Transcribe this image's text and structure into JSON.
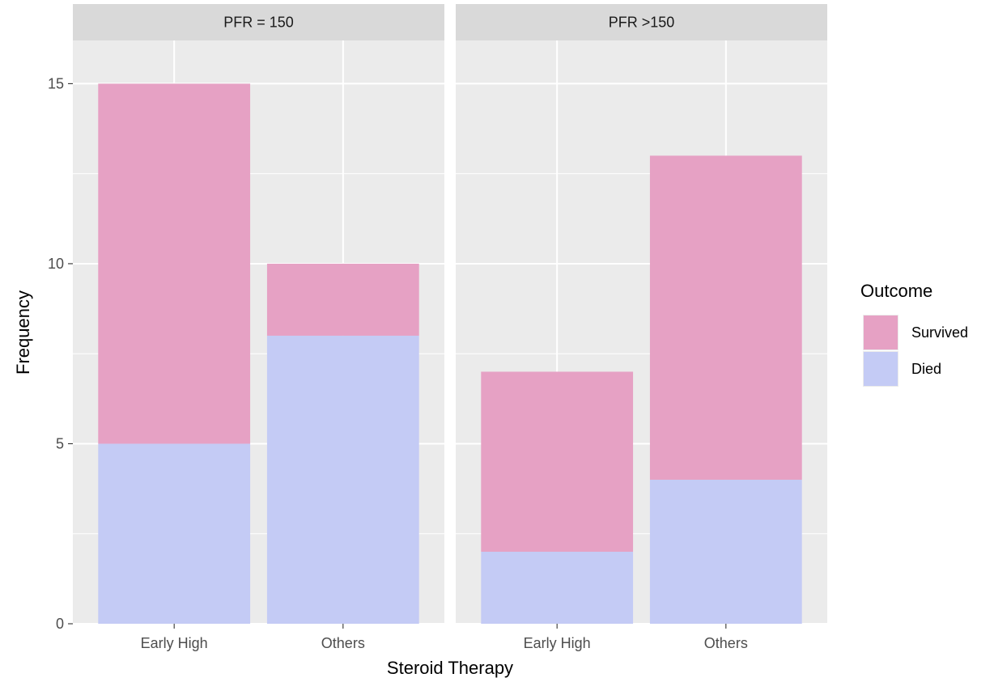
{
  "chart_data": {
    "type": "bar",
    "stacked": true,
    "xlabel": "Steroid Therapy",
    "ylabel": "Frequency",
    "ylim": [
      0,
      16.2
    ],
    "yticks": [
      0,
      5,
      10,
      15
    ],
    "grid": true,
    "categories": [
      "Early High",
      "Others"
    ],
    "panels": [
      {
        "label": "PFR = 150",
        "series": [
          {
            "name": "Died",
            "values": [
              5,
              8
            ]
          },
          {
            "name": "Survived",
            "values": [
              10,
              2
            ]
          }
        ]
      },
      {
        "label": "PFR >150",
        "series": [
          {
            "name": "Died",
            "values": [
              2,
              4
            ]
          },
          {
            "name": "Survived",
            "values": [
              5,
              9
            ]
          }
        ]
      }
    ],
    "legend": {
      "title": "Outcome",
      "position": "right",
      "entries": [
        "Survived",
        "Died"
      ]
    },
    "colors": {
      "Survived": "#e6a1c4",
      "Died": "#c4cbf5",
      "panel_background": "#ebebeb",
      "strip_background": "#d9d9d9",
      "grid": "#ffffff"
    }
  }
}
